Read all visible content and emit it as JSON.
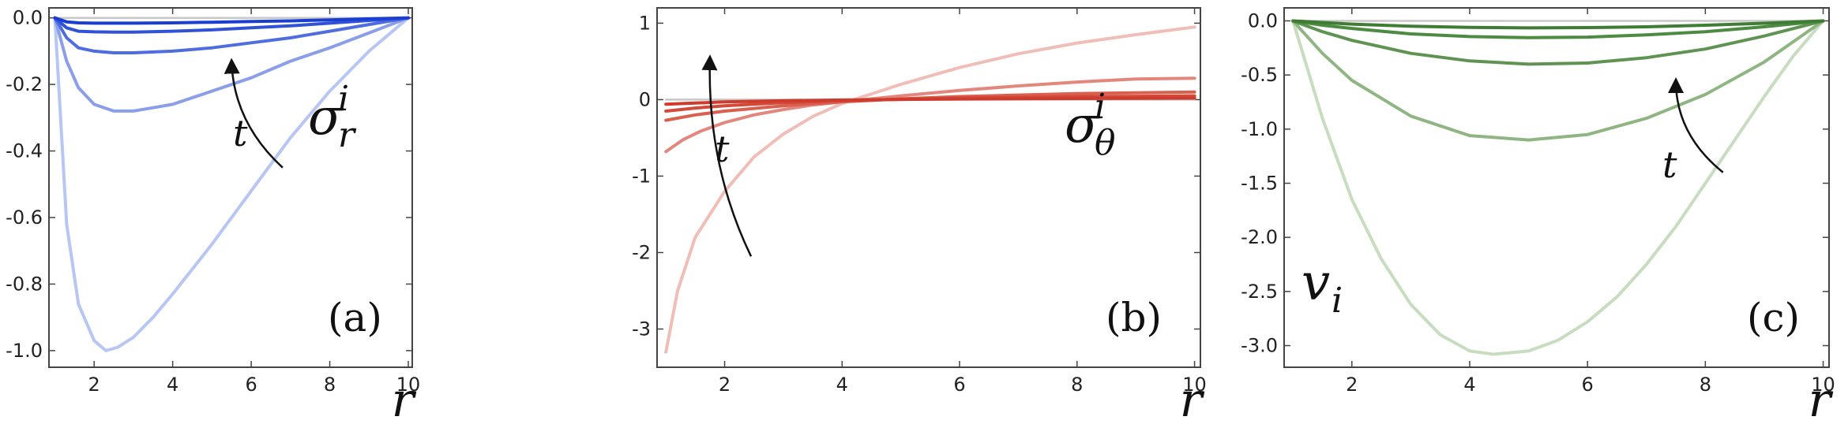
{
  "chart_data": [
    {
      "type": "line",
      "panel_label": "(a)",
      "xlabel": "r",
      "ylabel": "",
      "series_label": {
        "base": "σ",
        "sub": "r",
        "sup": "i"
      },
      "arrow_label": "t",
      "xlim": [
        0.85,
        10.1
      ],
      "ylim": [
        -1.05,
        0.03
      ],
      "xticks": [
        2,
        4,
        6,
        8,
        10
      ],
      "yticks": [
        0.0,
        -0.2,
        -0.4,
        -0.6,
        -0.8,
        -1.0
      ],
      "ytick_labels": [
        "0.0",
        "-0.2",
        "-0.4",
        "-0.6",
        "-0.8",
        "-1.0"
      ],
      "xtick_labels": [
        "2",
        "4",
        "6",
        "8",
        "10"
      ],
      "colors": [
        "#b7c6f3",
        "#8a9ee9",
        "#4f6ddf",
        "#2f52d7",
        "#1a3ed2",
        "#c8c8c8"
      ],
      "series": [
        {
          "x": [
            1,
            1.3,
            1.6,
            2,
            2.3,
            2.6,
            3,
            3.5,
            4,
            5,
            6,
            7,
            8,
            9,
            10
          ],
          "y": [
            0,
            -0.62,
            -0.86,
            -0.97,
            -1.0,
            -0.99,
            -0.96,
            -0.9,
            -0.83,
            -0.68,
            -0.52,
            -0.36,
            -0.22,
            -0.1,
            0
          ]
        },
        {
          "x": [
            1,
            1.3,
            1.6,
            2,
            2.5,
            3,
            3.5,
            4,
            5,
            6,
            7,
            8,
            9,
            10
          ],
          "y": [
            0,
            -0.13,
            -0.21,
            -0.26,
            -0.28,
            -0.28,
            -0.27,
            -0.26,
            -0.22,
            -0.18,
            -0.13,
            -0.09,
            -0.045,
            0
          ]
        },
        {
          "x": [
            1,
            1.3,
            1.6,
            2,
            2.5,
            3,
            4,
            5,
            6,
            7,
            8,
            9,
            10
          ],
          "y": [
            0,
            -0.06,
            -0.09,
            -0.1,
            -0.105,
            -0.105,
            -0.1,
            -0.09,
            -0.075,
            -0.06,
            -0.04,
            -0.02,
            0
          ]
        },
        {
          "x": [
            1,
            1.3,
            1.6,
            2,
            2.5,
            3,
            4,
            5,
            6,
            7,
            8,
            9,
            10
          ],
          "y": [
            0,
            -0.03,
            -0.04,
            -0.042,
            -0.043,
            -0.043,
            -0.04,
            -0.036,
            -0.03,
            -0.024,
            -0.016,
            -0.008,
            0
          ]
        },
        {
          "x": [
            1,
            1.3,
            1.6,
            2,
            3,
            4,
            5,
            6,
            7,
            8,
            9,
            10
          ],
          "y": [
            0,
            -0.012,
            -0.015,
            -0.016,
            -0.016,
            -0.015,
            -0.013,
            -0.011,
            -0.009,
            -0.006,
            -0.003,
            0
          ]
        },
        {
          "x": [
            1,
            10
          ],
          "y": [
            0,
            0
          ]
        }
      ],
      "arrow": {
        "from": [
          6.8,
          -0.45
        ],
        "to": [
          5.5,
          -0.13
        ]
      }
    },
    {
      "type": "line",
      "panel_label": "(b)",
      "xlabel": "r",
      "ylabel": "",
      "series_label": {
        "base": "σ",
        "sub": "θ",
        "sup": "i"
      },
      "arrow_label": "t",
      "xlim": [
        0.85,
        10.1
      ],
      "ylim": [
        -3.5,
        1.2
      ],
      "xticks": [
        2,
        4,
        6,
        8,
        10
      ],
      "yticks": [
        1,
        0,
        -1,
        -2,
        -3
      ],
      "ytick_labels": [
        "1",
        "0",
        "-1",
        "-2",
        "-3"
      ],
      "xtick_labels": [
        "2",
        "4",
        "6",
        "8",
        "10"
      ],
      "colors": [
        "#f0bdb7",
        "#e3877d",
        "#d9604f",
        "#d34a3a",
        "#cf3b2c",
        "#c8c8c8"
      ],
      "series": [
        {
          "x": [
            1,
            1.2,
            1.5,
            2,
            2.5,
            3,
            3.5,
            4,
            5,
            6,
            7,
            8,
            9,
            10
          ],
          "y": [
            -3.3,
            -2.5,
            -1.8,
            -1.2,
            -0.75,
            -0.45,
            -0.22,
            -0.05,
            0.2,
            0.42,
            0.6,
            0.74,
            0.85,
            0.95
          ]
        },
        {
          "x": [
            1,
            1.3,
            1.6,
            2,
            2.5,
            3,
            3.5,
            4,
            5,
            6,
            7,
            8,
            9,
            10
          ],
          "y": [
            -0.68,
            -0.52,
            -0.41,
            -0.3,
            -0.2,
            -0.13,
            -0.07,
            -0.03,
            0.05,
            0.12,
            0.18,
            0.23,
            0.27,
            0.28
          ]
        },
        {
          "x": [
            1,
            1.5,
            2,
            3,
            4,
            5,
            6,
            7,
            8,
            9,
            10
          ],
          "y": [
            -0.27,
            -0.2,
            -0.15,
            -0.08,
            -0.03,
            0.01,
            0.04,
            0.06,
            0.08,
            0.09,
            0.1
          ]
        },
        {
          "x": [
            1,
            1.5,
            2,
            3,
            4,
            5,
            6,
            7,
            8,
            9,
            10
          ],
          "y": [
            -0.15,
            -0.11,
            -0.08,
            -0.04,
            -0.015,
            0.005,
            0.02,
            0.03,
            0.04,
            0.045,
            0.05
          ]
        },
        {
          "x": [
            1,
            1.5,
            2,
            3,
            4,
            5,
            6,
            7,
            8,
            9,
            10
          ],
          "y": [
            -0.06,
            -0.045,
            -0.03,
            -0.015,
            -0.005,
            0.002,
            0.008,
            0.012,
            0.015,
            0.017,
            0.02
          ]
        },
        {
          "x": [
            1,
            10
          ],
          "y": [
            0,
            0
          ]
        }
      ],
      "arrow": {
        "from": [
          2.45,
          -2.05
        ],
        "to": [
          1.75,
          0.55
        ]
      }
    },
    {
      "type": "line",
      "panel_label": "(c)",
      "xlabel": "r",
      "ylabel": "",
      "series_label": {
        "base": "v",
        "sub": "i",
        "sup": ""
      },
      "arrow_label": "t",
      "xlim": [
        0.85,
        10.1
      ],
      "ylim": [
        -3.2,
        0.12
      ],
      "xticks": [
        2,
        4,
        6,
        8,
        10
      ],
      "yticks": [
        0.0,
        -0.5,
        -1.0,
        -1.5,
        -2.0,
        -2.5,
        -3.0
      ],
      "ytick_labels": [
        "0.0",
        "-0.5",
        "-1.0",
        "-1.5",
        "-2.0",
        "-2.5",
        "-3.0"
      ],
      "xtick_labels": [
        "2",
        "4",
        "6",
        "8",
        "10"
      ],
      "colors": [
        "#c8dcc0",
        "#8fb583",
        "#5e9352",
        "#4d8a42",
        "#3f7d35",
        "#c8c8c8"
      ],
      "series": [
        {
          "x": [
            1,
            1.5,
            2,
            2.5,
            3,
            3.5,
            4,
            4.4,
            5,
            5.5,
            6,
            6.5,
            7,
            7.5,
            8,
            8.5,
            9,
            9.5,
            10
          ],
          "y": [
            0,
            -0.9,
            -1.65,
            -2.2,
            -2.62,
            -2.9,
            -3.05,
            -3.08,
            -3.05,
            -2.95,
            -2.78,
            -2.55,
            -2.25,
            -1.9,
            -1.5,
            -1.1,
            -0.7,
            -0.32,
            0
          ]
        },
        {
          "x": [
            1,
            1.5,
            2,
            3,
            4,
            5,
            6,
            7,
            8,
            9,
            10
          ],
          "y": [
            0,
            -0.3,
            -0.55,
            -0.88,
            -1.06,
            -1.1,
            -1.05,
            -0.9,
            -0.68,
            -0.38,
            0
          ]
        },
        {
          "x": [
            1,
            1.5,
            2,
            3,
            4,
            5,
            6,
            7,
            8,
            9,
            10
          ],
          "y": [
            0,
            -0.1,
            -0.18,
            -0.3,
            -0.37,
            -0.4,
            -0.39,
            -0.34,
            -0.26,
            -0.14,
            0
          ]
        },
        {
          "x": [
            1,
            1.5,
            2,
            3,
            4,
            5,
            6,
            7,
            8,
            9,
            10
          ],
          "y": [
            0,
            -0.04,
            -0.07,
            -0.12,
            -0.145,
            -0.155,
            -0.15,
            -0.13,
            -0.1,
            -0.055,
            0
          ]
        },
        {
          "x": [
            1,
            2,
            3,
            4,
            5,
            6,
            7,
            8,
            9,
            10
          ],
          "y": [
            0,
            -0.03,
            -0.05,
            -0.06,
            -0.065,
            -0.062,
            -0.055,
            -0.04,
            -0.022,
            0
          ]
        },
        {
          "x": [
            1,
            10
          ],
          "y": [
            0,
            0
          ]
        }
      ],
      "arrow": {
        "from": [
          8.3,
          -1.4
        ],
        "to": [
          7.5,
          -0.55
        ]
      }
    }
  ]
}
